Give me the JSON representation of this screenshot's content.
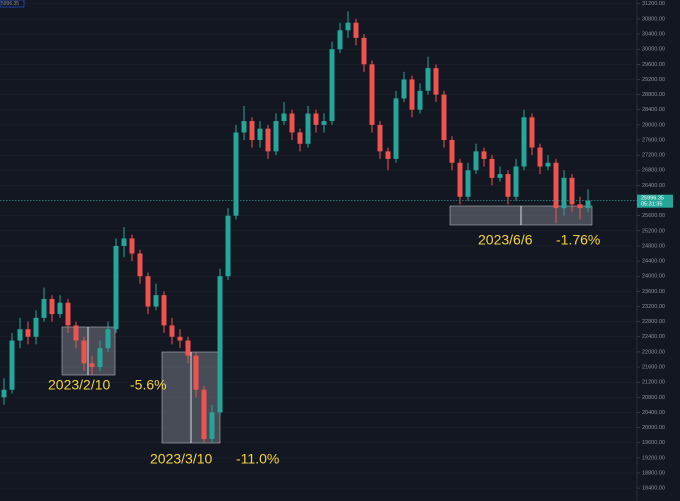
{
  "chart_data": {
    "type": "candlestick",
    "corner_label": "5996.35",
    "last_price": {
      "value": 25996.35,
      "label": "25996.35",
      "countdown": "05:31:35"
    },
    "up_color": "#26a69a",
    "down_color": "#ef5350",
    "ylim": [
      18060,
      31300
    ],
    "yticks": [
      {
        "value": 18400,
        "label": "18400.00"
      },
      {
        "value": 18800,
        "label": "18800.00"
      },
      {
        "value": 19200,
        "label": "19200.00"
      },
      {
        "value": 19600,
        "label": "19600.00"
      },
      {
        "value": 20000,
        "label": "20000.00"
      },
      {
        "value": 20400,
        "label": "20400.00"
      },
      {
        "value": 20800,
        "label": "20800.00"
      },
      {
        "value": 21200,
        "label": "21200.00"
      },
      {
        "value": 21600,
        "label": "21600.00"
      },
      {
        "value": 22000,
        "label": "22000.00"
      },
      {
        "value": 22400,
        "label": "22400.00"
      },
      {
        "value": 22800,
        "label": "22800.00"
      },
      {
        "value": 23200,
        "label": "23200.00"
      },
      {
        "value": 23600,
        "label": "23600.00"
      },
      {
        "value": 24000,
        "label": "24000.00"
      },
      {
        "value": 24400,
        "label": "24400.00"
      },
      {
        "value": 24800,
        "label": "24800.00"
      },
      {
        "value": 25200,
        "label": "25200.00"
      },
      {
        "value": 25600,
        "label": "25600.00"
      },
      {
        "value": 26000,
        "label": "26000.00"
      },
      {
        "value": 26400,
        "label": "26400.00"
      },
      {
        "value": 26800,
        "label": "26800.00"
      },
      {
        "value": 27200,
        "label": "27200.00"
      },
      {
        "value": 27600,
        "label": "27600.00"
      },
      {
        "value": 28000,
        "label": "28000.00"
      },
      {
        "value": 28400,
        "label": "28400.00"
      },
      {
        "value": 28800,
        "label": "28800.00"
      },
      {
        "value": 29200,
        "label": "29200.00"
      },
      {
        "value": 29600,
        "label": "29600.00"
      },
      {
        "value": 30000,
        "label": "30000.00"
      },
      {
        "value": 30400,
        "label": "30400.00"
      },
      {
        "value": 30800,
        "label": "30800.00"
      },
      {
        "value": 31200,
        "label": "31200.00"
      }
    ],
    "annotations": [
      {
        "date": "2023/2/10",
        "change": "-5.6%"
      },
      {
        "date": "2023/3/10",
        "change": "-11.0%"
      },
      {
        "date": "2023/6/6",
        "change": "-1.76%"
      }
    ],
    "candles": [
      {
        "open": 20800,
        "high": 21300,
        "low": 20600,
        "close": 21000
      },
      {
        "open": 21000,
        "high": 22500,
        "low": 20900,
        "close": 22300
      },
      {
        "open": 22300,
        "high": 22900,
        "low": 22100,
        "close": 22600
      },
      {
        "open": 22600,
        "high": 22800,
        "low": 22200,
        "close": 22400
      },
      {
        "open": 22400,
        "high": 23100,
        "low": 22200,
        "close": 22900
      },
      {
        "open": 22900,
        "high": 23700,
        "low": 22800,
        "close": 23400
      },
      {
        "open": 23400,
        "high": 23500,
        "low": 22800,
        "close": 23000
      },
      {
        "open": 23000,
        "high": 23500,
        "low": 22900,
        "close": 23300
      },
      {
        "open": 23300,
        "high": 23400,
        "low": 22500,
        "close": 22700
      },
      {
        "open": 22700,
        "high": 22800,
        "low": 22100,
        "close": 22300
      },
      {
        "open": 22300,
        "high": 22400,
        "low": 21500,
        "close": 21700
      },
      {
        "open": 21700,
        "high": 21900,
        "low": 21400,
        "close": 21600
      },
      {
        "open": 21600,
        "high": 22300,
        "low": 21500,
        "close": 22100
      },
      {
        "open": 22100,
        "high": 22800,
        "low": 22000,
        "close": 22600
      },
      {
        "open": 22600,
        "high": 25000,
        "low": 22500,
        "close": 24800
      },
      {
        "open": 24800,
        "high": 25300,
        "low": 24500,
        "close": 25000
      },
      {
        "open": 25000,
        "high": 25100,
        "low": 24400,
        "close": 24600
      },
      {
        "open": 24600,
        "high": 24700,
        "low": 23800,
        "close": 24000
      },
      {
        "open": 24000,
        "high": 24100,
        "low": 23000,
        "close": 23200
      },
      {
        "open": 23200,
        "high": 23800,
        "low": 23100,
        "close": 23500
      },
      {
        "open": 23500,
        "high": 23600,
        "low": 22500,
        "close": 22700
      },
      {
        "open": 22700,
        "high": 22900,
        "low": 22200,
        "close": 22400
      },
      {
        "open": 22400,
        "high": 22600,
        "low": 22100,
        "close": 22300
      },
      {
        "open": 22300,
        "high": 22400,
        "low": 21700,
        "close": 21900
      },
      {
        "open": 21900,
        "high": 22000,
        "low": 20800,
        "close": 21000
      },
      {
        "open": 21000,
        "high": 21100,
        "low": 19600,
        "close": 19700
      },
      {
        "open": 19700,
        "high": 20600,
        "low": 19600,
        "close": 20400
      },
      {
        "open": 20400,
        "high": 24200,
        "low": 20300,
        "close": 24000
      },
      {
        "open": 24000,
        "high": 25800,
        "low": 23900,
        "close": 25600
      },
      {
        "open": 25600,
        "high": 28000,
        "low": 25500,
        "close": 27800
      },
      {
        "open": 27800,
        "high": 28500,
        "low": 27600,
        "close": 28100
      },
      {
        "open": 28100,
        "high": 28200,
        "low": 27400,
        "close": 27600
      },
      {
        "open": 27600,
        "high": 28100,
        "low": 27400,
        "close": 27900
      },
      {
        "open": 27900,
        "high": 28000,
        "low": 27100,
        "close": 27300
      },
      {
        "open": 27300,
        "high": 28300,
        "low": 27200,
        "close": 28100
      },
      {
        "open": 28100,
        "high": 28600,
        "low": 28000,
        "close": 28300
      },
      {
        "open": 28300,
        "high": 28400,
        "low": 27600,
        "close": 27800
      },
      {
        "open": 27800,
        "high": 27900,
        "low": 27300,
        "close": 27500
      },
      {
        "open": 27500,
        "high": 28500,
        "low": 27400,
        "close": 28300
      },
      {
        "open": 28300,
        "high": 28400,
        "low": 27800,
        "close": 28000
      },
      {
        "open": 28000,
        "high": 28300,
        "low": 27800,
        "close": 28100
      },
      {
        "open": 28100,
        "high": 30200,
        "low": 28000,
        "close": 30000
      },
      {
        "open": 30000,
        "high": 30700,
        "low": 29900,
        "close": 30500
      },
      {
        "open": 30500,
        "high": 31000,
        "low": 30300,
        "close": 30700
      },
      {
        "open": 30700,
        "high": 30800,
        "low": 30100,
        "close": 30300
      },
      {
        "open": 30300,
        "high": 30400,
        "low": 29400,
        "close": 29600
      },
      {
        "open": 29600,
        "high": 29700,
        "low": 27800,
        "close": 28000
      },
      {
        "open": 28000,
        "high": 28100,
        "low": 27100,
        "close": 27300
      },
      {
        "open": 27300,
        "high": 27400,
        "low": 26800,
        "close": 27100
      },
      {
        "open": 27100,
        "high": 28900,
        "low": 27000,
        "close": 28700
      },
      {
        "open": 28700,
        "high": 29400,
        "low": 28600,
        "close": 29200
      },
      {
        "open": 29200,
        "high": 29300,
        "low": 28200,
        "close": 28400
      },
      {
        "open": 28400,
        "high": 29100,
        "low": 28300,
        "close": 28900
      },
      {
        "open": 28900,
        "high": 29800,
        "low": 28800,
        "close": 29500
      },
      {
        "open": 29500,
        "high": 29600,
        "low": 28600,
        "close": 28800
      },
      {
        "open": 28800,
        "high": 28900,
        "low": 27400,
        "close": 27600
      },
      {
        "open": 27600,
        "high": 27700,
        "low": 26800,
        "close": 27000
      },
      {
        "open": 27000,
        "high": 27100,
        "low": 25900,
        "close": 26100
      },
      {
        "open": 26100,
        "high": 27000,
        "low": 26000,
        "close": 26800
      },
      {
        "open": 26800,
        "high": 27500,
        "low": 26700,
        "close": 27300
      },
      {
        "open": 27300,
        "high": 27400,
        "low": 26900,
        "close": 27100
      },
      {
        "open": 27100,
        "high": 27200,
        "low": 26400,
        "close": 26600
      },
      {
        "open": 26600,
        "high": 26900,
        "low": 26500,
        "close": 26700
      },
      {
        "open": 26700,
        "high": 26800,
        "low": 25900,
        "close": 26100
      },
      {
        "open": 26100,
        "high": 27100,
        "low": 26000,
        "close": 26900
      },
      {
        "open": 26900,
        "high": 28400,
        "low": 26800,
        "close": 28200
      },
      {
        "open": 28200,
        "high": 28300,
        "low": 27200,
        "close": 27400
      },
      {
        "open": 27400,
        "high": 27500,
        "low": 26700,
        "close": 26900
      },
      {
        "open": 26900,
        "high": 27200,
        "low": 26800,
        "close": 27000
      },
      {
        "open": 27000,
        "high": 27100,
        "low": 25400,
        "close": 25800
      },
      {
        "open": 25800,
        "high": 26800,
        "low": 25600,
        "close": 26600
      },
      {
        "open": 26600,
        "high": 26700,
        "low": 25700,
        "close": 25900
      },
      {
        "open": 25900,
        "high": 26100,
        "low": 25500,
        "close": 25800
      },
      {
        "open": 25800,
        "high": 26300,
        "low": 25700,
        "close": 25996.35
      }
    ]
  }
}
